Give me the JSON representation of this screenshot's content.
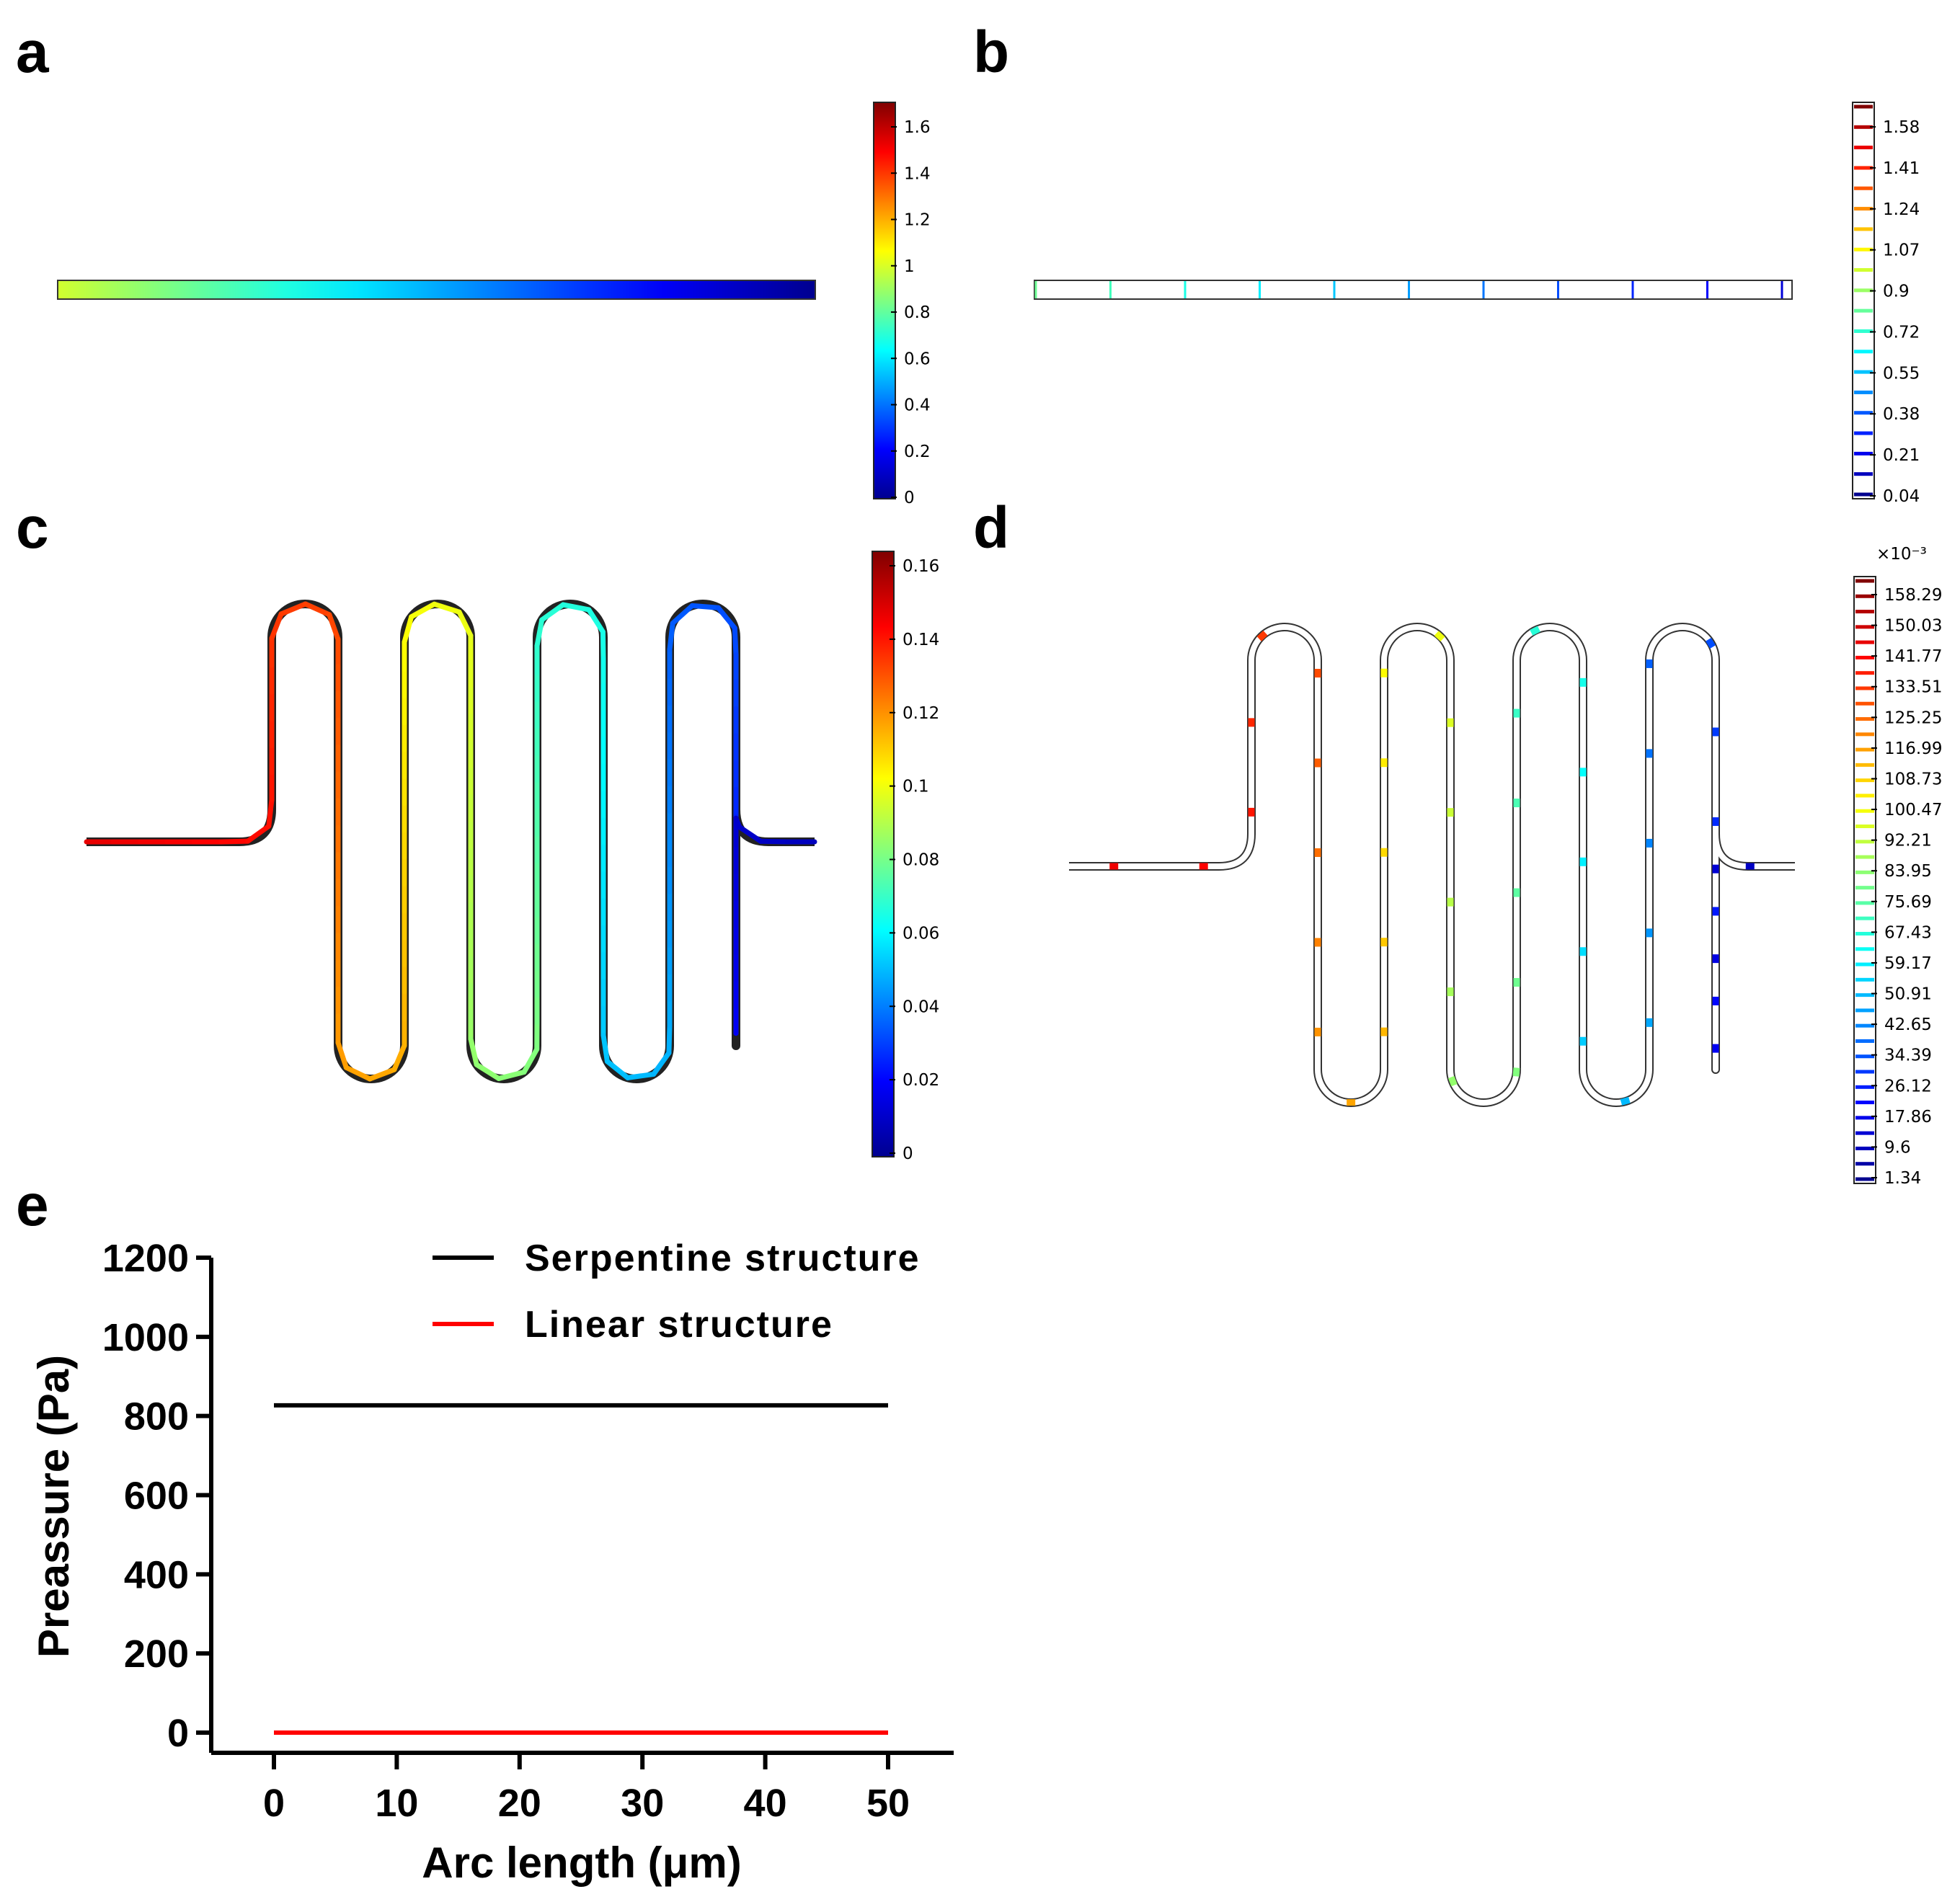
{
  "panel_labels": [
    "a",
    "b",
    "c",
    "d",
    "e"
  ],
  "colorbars": {
    "a": {
      "ticks": [
        "1.6",
        "1.4",
        "1.2",
        "1",
        "0.8",
        "0.6",
        "0.4",
        "0.2",
        "0"
      ]
    },
    "b": {
      "ticks": [
        "1.58",
        "1.41",
        "1.24",
        "1.07",
        "0.9",
        "0.72",
        "0.55",
        "0.38",
        "0.21",
        "0.04"
      ]
    },
    "c": {
      "ticks": [
        "0.16",
        "0.14",
        "0.12",
        "0.1",
        "0.08",
        "0.06",
        "0.04",
        "0.02",
        "0"
      ]
    },
    "d": {
      "multiplier": "×10⁻³",
      "ticks": [
        "158.29",
        "150.03",
        "141.77",
        "133.51",
        "125.25",
        "116.99",
        "108.73",
        "100.47",
        "92.21",
        "83.95",
        "75.69",
        "67.43",
        "59.17",
        "50.91",
        "42.65",
        "34.39",
        "26.12",
        "17.86",
        "9.6",
        "1.34"
      ]
    }
  },
  "colors": {
    "jet": [
      "#00008f",
      "#0000ff",
      "#0080ff",
      "#00ffff",
      "#80ff80",
      "#ffff00",
      "#ff8000",
      "#ff0000",
      "#800000"
    ],
    "serpentine_line": "#000000",
    "linear_line": "#ff0000"
  },
  "chart_data": {
    "type": "line",
    "title": "",
    "xlabel": "Arc length (μm)",
    "ylabel": "Preassure (Pa)",
    "xlim": [
      -5,
      55
    ],
    "ylim": [
      0,
      1200
    ],
    "xticks": [
      "0",
      "10",
      "20",
      "30",
      "40",
      "50"
    ],
    "yticks": [
      "0",
      "200",
      "400",
      "600",
      "800",
      "1000",
      "1200"
    ],
    "legend_position": "top-right",
    "series": [
      {
        "name": "Serpentine structure",
        "x": [
          0,
          50
        ],
        "y": [
          827,
          827
        ],
        "color": "#000000"
      },
      {
        "name": "Linear structure",
        "x": [
          0,
          50
        ],
        "y": [
          0,
          0
        ],
        "color": "#ff0000"
      }
    ]
  }
}
